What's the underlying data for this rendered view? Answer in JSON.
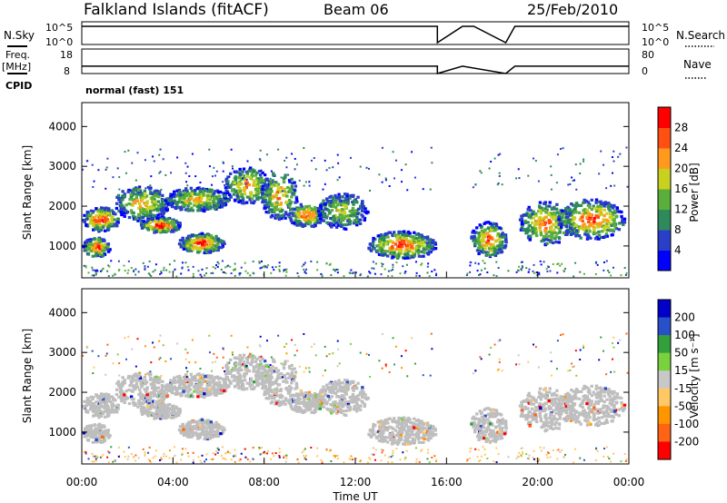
{
  "header": {
    "station": "Falkland Islands (fitACF)",
    "beam": "Beam 06",
    "date": "25/Feb/2010"
  },
  "params": {
    "nsky_label": "N.Sky",
    "nsearch_label": "N.Search",
    "freq_label": "Freq.",
    "freq_unit": "[MHz]",
    "nave_label": "Nave",
    "cpid_label": "CPID",
    "cpid_value": "normal (fast) 151",
    "noise_ticks_left": [
      "10^5",
      "10^0"
    ],
    "noise_ticks_right": [
      "10^5",
      "10^0"
    ],
    "freq_ticks": [
      "18",
      "8"
    ],
    "nave_ticks": [
      "80",
      "0"
    ]
  },
  "colors": {
    "power_scale": [
      "#0000ff",
      "#2a3fc8",
      "#2e8a5a",
      "#5aae3a",
      "#c8d21e",
      "#ff9a1e",
      "#ff5014",
      "#ff0000"
    ],
    "velocity_scale": [
      "#ff0000",
      "#ff6414",
      "#ff9600",
      "#ffc864",
      "#c8c8c8",
      "#78d23c",
      "#32a03c",
      "#2850c8",
      "#0000c8"
    ],
    "ground_scatter": "#bebebe"
  },
  "chart_data": [
    {
      "type": "line",
      "panel": "noise",
      "x": [
        0,
        2,
        4,
        6,
        8,
        10,
        12,
        14,
        15.6,
        15.6,
        16.7,
        17.2,
        18.6,
        19.0,
        19.5,
        22,
        24
      ],
      "series": [
        {
          "values": [
            100000,
            100000,
            100000,
            100000,
            100000,
            100000,
            100000,
            100000,
            100000,
            1,
            100000,
            100000,
            1,
            100000,
            100000,
            100000,
            100000
          ]
        }
      ],
      "xlim": [
        0,
        24
      ],
      "ylim_ticks": [
        "10^0",
        "10^5"
      ]
    },
    {
      "type": "line",
      "panel": "frequency",
      "x": [
        0,
        4,
        8,
        12,
        15.6,
        15.6,
        16.7,
        18.6,
        19.0,
        24
      ],
      "series": [
        {
          "values": [
            11,
            11,
            11,
            11,
            11,
            8,
            11,
            8,
            11,
            11
          ]
        }
      ],
      "ylim": [
        8,
        18
      ],
      "xlim": [
        0,
        24
      ]
    },
    {
      "type": "heatmap",
      "panel": "power",
      "ylabel": "Slant Range [km]",
      "yticks": [
        "1000",
        "2000",
        "3000",
        "4000"
      ],
      "ylim": [
        200,
        4600
      ],
      "xlim": [
        0,
        24
      ],
      "colorbar_label": "Power [dB]",
      "colorbar_ticks": [
        "4",
        "8",
        "12",
        "16",
        "20",
        "24",
        "28"
      ],
      "data_gaps_hours": [
        [
          15.6,
          16.8
        ],
        [
          18.7,
          19.0
        ]
      ]
    },
    {
      "type": "heatmap",
      "panel": "velocity",
      "ylabel": "Slant Range [km]",
      "yticks": [
        "1000",
        "2000",
        "3000",
        "4000"
      ],
      "ylim": [
        200,
        4600
      ],
      "xlim": [
        0,
        24
      ],
      "colorbar_label": "Velocity [m s⁻¹]",
      "colorbar_ticks": [
        "200",
        "100",
        "50",
        "15",
        "-15",
        "-50",
        "-100",
        "-200"
      ],
      "data_gaps_hours": [
        [
          15.6,
          16.8
        ],
        [
          18.7,
          19.0
        ]
      ]
    }
  ],
  "xaxis": {
    "label": "Time UT",
    "ticks": [
      "00:00",
      "04:00",
      "08:00",
      "12:00",
      "16:00",
      "20:00",
      "00:00"
    ]
  }
}
